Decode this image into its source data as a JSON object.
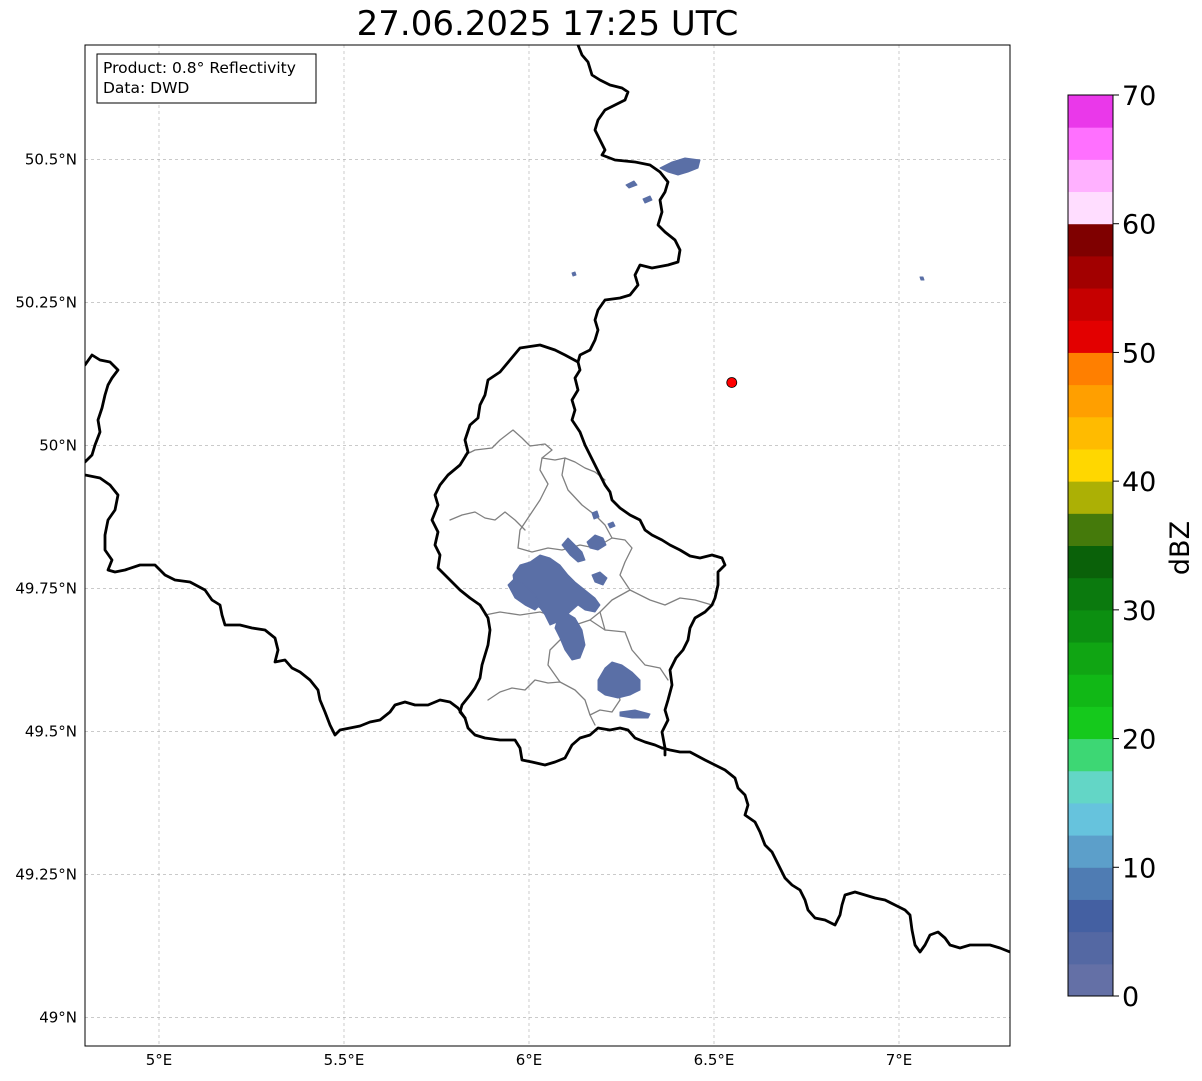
{
  "title": "27.06.2025 17:25 UTC",
  "info_box": {
    "product": "Product: 0.8° Reflectivity",
    "data": "Data: DWD"
  },
  "map": {
    "lon_range": [
      4.8,
      7.3
    ],
    "lat_range": [
      48.95,
      50.7
    ],
    "lon_ticks": [
      {
        "value": 5.0,
        "label": "5°E"
      },
      {
        "value": 5.5,
        "label": "5.5°E"
      },
      {
        "value": 6.0,
        "label": "6°E"
      },
      {
        "value": 6.5,
        "label": "6.5°E"
      },
      {
        "value": 7.0,
        "label": "7°E"
      }
    ],
    "lat_ticks": [
      {
        "value": 50.5,
        "label": "50.5°N"
      },
      {
        "value": 50.25,
        "label": "50.25°N"
      },
      {
        "value": 50.0,
        "label": "50°N"
      },
      {
        "value": 49.75,
        "label": "49.75°N"
      },
      {
        "value": 49.5,
        "label": "49.5°N"
      },
      {
        "value": 49.25,
        "label": "49.25°N"
      },
      {
        "value": 49.0,
        "label": "49°N"
      }
    ],
    "radar_site": {
      "lon": 6.548,
      "lat": 50.11,
      "color": "#ff0000"
    },
    "echo_color": "#5a6fa6"
  },
  "colorbar": {
    "label": "dBZ",
    "range": [
      0,
      70
    ],
    "ticks": [
      {
        "value": 0,
        "label": "0"
      },
      {
        "value": 10,
        "label": "10"
      },
      {
        "value": 20,
        "label": "20"
      },
      {
        "value": 30,
        "label": "30"
      },
      {
        "value": 40,
        "label": "40"
      },
      {
        "value": 50,
        "label": "50"
      },
      {
        "value": 60,
        "label": "60"
      },
      {
        "value": 70,
        "label": "70"
      }
    ],
    "colors": [
      "#6470a6",
      "#5468a3",
      "#4460a2",
      "#4f7cb3",
      "#5c9fca",
      "#66c3dd",
      "#63d6c6",
      "#3dd774",
      "#15c91c",
      "#11b816",
      "#10a513",
      "#0c8f11",
      "#0b7a0e",
      "#0a6109",
      "#457a0b",
      "#acb005",
      "#ffd700",
      "#ffbb00",
      "#ff9f00",
      "#ff7f00",
      "#e30000",
      "#c60000",
      "#a20000",
      "#7f0000",
      "#ffddff",
      "#ffb1ff",
      "#ff70ff",
      "#ea38ea"
    ]
  }
}
